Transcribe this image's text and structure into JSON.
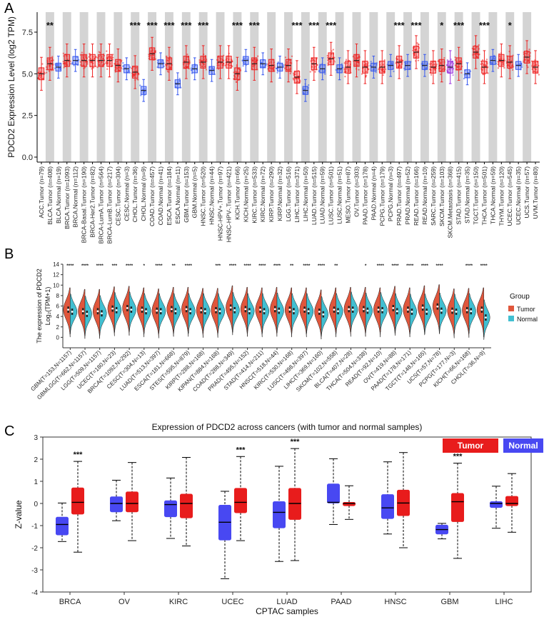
{
  "panel_labels": [
    "A",
    "B",
    "C"
  ],
  "chart_data": [
    {
      "type": "box",
      "panel": "A",
      "ylabel": "PDCD2 Expression Level (log2 TPM)",
      "ylim": [
        -0.3,
        8.7
      ],
      "yticks": [
        "0.0",
        "2.5",
        "5.0",
        "7.5"
      ],
      "ytick_values": [
        0,
        2.5,
        5,
        7.5
      ],
      "categories": [
        "ACC.Tumor (n=79)",
        "BLCA.Tumor (n=408)",
        "BLCA.Normal (n=19)",
        "BRCA.Tumor (n=1093)",
        "BRCA.Normal (n=112)",
        "BRCA-Basal.Tumor (n=190)",
        "BRCA-Her2.Tumor (n=82)",
        "BRCA-LumA.Tumor (n=564)",
        "BRCA-LumB.Tumor (n=217)",
        "CESC.Tumor (n=304)",
        "CESC.Normal (n=3)",
        "CHOL.Tumor (n=36)",
        "CHOL.Normal (n=9)",
        "COAD.Tumor (n=457)",
        "COAD.Normal (n=41)",
        "ESCA.Tumor (n=184)",
        "ESCA.Normal (n=11)",
        "GBM.Tumor (n=153)",
        "GBM.Normal (n=5)",
        "HNSC.Tumor (n=520)",
        "HNSC.Normal (n=44)",
        "HNSC-HPV+.Tumor (n=97)",
        "HNSC-HPV-.Tumor (n=421)",
        "KICH.Tumor (n=66)",
        "KICH.Normal (n=25)",
        "KIRC.Tumor (n=533)",
        "KIRC.Normal (n=72)",
        "KIRP.Tumor (n=290)",
        "KIRP.Normal (n=32)",
        "LGG.Tumor (n=516)",
        "LIHC.Tumor (n=371)",
        "LIHC.Normal (n=50)",
        "LUAD.Tumor (n=515)",
        "LUAD.Normal (n=59)",
        "LUSC.Tumor (n=501)",
        "LUSC.Normal (n=51)",
        "MESO.Tumor (n=87)",
        "OV.Tumor (n=303)",
        "PAAD.Tumor (n=178)",
        "PAAD.Normal (n=4)",
        "PCPG.Tumor (n=179)",
        "PCPG.Normal (n=3)",
        "PRAD.Tumor (n=497)",
        "PRAD.Normal (n=52)",
        "READ.Tumor (n=166)",
        "READ.Normal (n=10)",
        "SARC.Tumor (n=259)",
        "SKCM.Tumor (n=103)",
        "SKCM.Metastasis (n=368)",
        "STAD.Tumor (n=415)",
        "STAD.Normal (n=35)",
        "TGCT.Tumor (n=150)",
        "THCA.Tumor (n=501)",
        "THCA.Normal (n=59)",
        "THYM.Tumor (n=120)",
        "UCEC.Tumor (n=545)",
        "UCEC.Normal (n=35)",
        "UCS.Tumor (n=57)",
        "UVM.Tumor (n=80)"
      ],
      "group": [
        "T",
        "T",
        "N",
        "T",
        "N",
        "T",
        "T",
        "T",
        "T",
        "T",
        "N",
        "T",
        "N",
        "T",
        "N",
        "T",
        "N",
        "T",
        "N",
        "T",
        "N",
        "T",
        "T",
        "T",
        "N",
        "T",
        "N",
        "T",
        "N",
        "T",
        "T",
        "N",
        "T",
        "N",
        "T",
        "N",
        "T",
        "T",
        "T",
        "N",
        "T",
        "N",
        "T",
        "N",
        "T",
        "N",
        "T",
        "T",
        "M",
        "T",
        "N",
        "T",
        "T",
        "N",
        "T",
        "T",
        "N",
        "T",
        "T"
      ],
      "medians": [
        5.0,
        5.6,
        5.4,
        5.8,
        5.8,
        5.8,
        5.8,
        5.8,
        5.8,
        5.5,
        5.3,
        5.1,
        4.0,
        6.2,
        5.6,
        5.6,
        4.4,
        5.7,
        5.3,
        5.7,
        5.2,
        5.7,
        5.7,
        5.0,
        5.8,
        5.6,
        5.6,
        5.5,
        5.4,
        5.5,
        4.8,
        4.0,
        5.6,
        5.3,
        5.9,
        5.3,
        5.4,
        5.8,
        5.4,
        5.4,
        5.4,
        5.5,
        5.7,
        5.5,
        6.3,
        5.5,
        5.4,
        5.5,
        5.4,
        5.6,
        5.0,
        6.3,
        5.4,
        5.8,
        5.8,
        5.7,
        5.5,
        6.0,
        5.4
      ],
      "significance": [
        "",
        "**",
        "",
        "",
        "",
        "",
        "",
        "",
        "",
        "",
        "",
        "***",
        "",
        "***",
        "",
        "***",
        "",
        "***",
        "",
        "***",
        "",
        "",
        "",
        "***",
        "",
        "***",
        "",
        "",
        "",
        "",
        "***",
        "",
        "***",
        "",
        "***",
        "",
        "",
        "",
        "",
        "",
        "",
        "",
        "***",
        "",
        "***",
        "",
        "",
        "*",
        "",
        "***",
        "",
        "",
        "***",
        "",
        "",
        "*",
        "",
        "",
        ""
      ],
      "colors": {
        "tumor": "#ee2222",
        "normal": "#3355ee",
        "metastasis": "#9933dd",
        "band": "#d4d4d4"
      }
    },
    {
      "type": "violin",
      "panel": "B",
      "ylabel_line1": "The expression of PDCD2",
      "ylabel_line2": "Log₂(TPM+1)",
      "ylim": [
        -2,
        14
      ],
      "yticks": [
        "0",
        "2",
        "4",
        "6",
        "8",
        "10",
        "12",
        "14"
      ],
      "ytick_values": [
        0,
        2,
        4,
        6,
        8,
        10,
        12,
        14
      ],
      "categories": [
        "GBM(T=153,N=1157)",
        "GBMLGG(T=662,N=1157)",
        "LGG(T=509,N=1157)",
        "UCEC(T=180,N=23)",
        "BRCA(T=1092,N=292)",
        "CESC(T=304,N=13)",
        "LUAD(T=513,N=397)",
        "ESCA(T=181,N=668)",
        "STES(T=595,N=879)",
        "KIRP(T=288,N=168)",
        "KIPAN(T=884,N=168)",
        "COAD(T=288,N=349)",
        "PRAD(T=495,N=152)",
        "STAD(T=414,N=211)",
        "HNSC(T=518,N=44)",
        "KIRC(T=530,N=168)",
        "LUSC(T=498,N=397)",
        "LIHC(T=369,N=160)",
        "SKCM(T=102,N=558)",
        "BLCA(T=407,N=28)",
        "THCA(T=504,N=338)",
        "READ(T=92,N=10)",
        "OV(T=419,N=88)",
        "PAAD(T=178,N=171)",
        "TGCT(T=148,N=165)",
        "UCS(T=57,N=78)",
        "PCPG(T=177,N=3)",
        "KICH(T=66,N=168)",
        "CHOL(T=36,N=9)"
      ],
      "tumor_median": [
        5.3,
        5.0,
        5.0,
        5.5,
        5.6,
        5.3,
        5.1,
        5.4,
        5.4,
        5.2,
        5.2,
        5.7,
        5.4,
        5.3,
        5.4,
        5.3,
        5.3,
        4.9,
        5.3,
        5.4,
        5.4,
        5.3,
        5.6,
        5.3,
        5.7,
        5.9,
        5.1,
        5.2,
        5.3
      ],
      "normal_median": [
        4.9,
        4.5,
        4.6,
        5.2,
        5.3,
        5.0,
        5.0,
        5.0,
        5.0,
        5.0,
        5.0,
        5.2,
        5.0,
        5.0,
        5.1,
        5.0,
        5.0,
        4.4,
        5.0,
        5.3,
        5.1,
        5.2,
        5.0,
        4.9,
        4.9,
        5.1,
        4.9,
        5.0,
        3.8
      ],
      "significance": [
        "****",
        "****",
        "****",
        "***",
        "****",
        "*",
        "****",
        "**",
        "****",
        "",
        "***",
        "****",
        "****",
        "****",
        "****",
        "**",
        "****",
        "****",
        "**",
        "",
        "*",
        "****",
        "****",
        "****",
        "****",
        "****",
        "",
        "****",
        "****"
      ],
      "legend_title": "Group",
      "legend": [
        "Tumor",
        "Normal"
      ],
      "colors": {
        "tumor": "#e0563c",
        "normal": "#41bfd1"
      }
    },
    {
      "type": "box",
      "panel": "C",
      "title": "Expression of PDCD2 across cancers (with tumor and normal samples)",
      "xlabel": "CPTAC samples",
      "ylabel": "Z-value",
      "ylim": [
        -4,
        3
      ],
      "yticks": [
        "-4",
        "-3",
        "-2",
        "-1",
        "0",
        "1",
        "2",
        "3"
      ],
      "ytick_values": [
        -4,
        -3,
        -2,
        -1,
        0,
        1,
        2,
        3
      ],
      "categories": [
        "BRCA",
        "OV",
        "KIRC",
        "UCEC",
        "LUAD",
        "PAAD",
        "HNSC",
        "GBM",
        "LIHC"
      ],
      "legend": [
        "Tumor",
        "Normal"
      ],
      "colors": {
        "tumor": "#e81c1c",
        "normal": "#4848f2"
      },
      "normal": [
        {
          "min": -1.72,
          "q1": -1.42,
          "median": -0.95,
          "q3": -0.62,
          "max": 0.02
        },
        {
          "min": -0.78,
          "q1": -0.38,
          "median": 0.0,
          "q3": 0.3,
          "max": 1.05
        },
        {
          "min": -1.58,
          "q1": -0.6,
          "median": -0.05,
          "q3": 0.12,
          "max": 1.15
        },
        {
          "min": -3.4,
          "q1": -1.65,
          "median": -0.85,
          "q3": -0.08,
          "max": 0.55
        },
        {
          "min": -2.62,
          "q1": -1.1,
          "median": -0.4,
          "q3": 0.08,
          "max": 1.68
        },
        {
          "min": -0.95,
          "q1": 0.02,
          "median": 0.05,
          "q3": 0.88,
          "max": 2.02
        },
        {
          "min": -1.38,
          "q1": -0.68,
          "median": -0.2,
          "q3": 0.4,
          "max": 1.88
        },
        {
          "min": -1.6,
          "q1": -1.38,
          "median": -1.18,
          "q3": -0.98,
          "max": -0.9
        },
        {
          "min": -1.12,
          "q1": -0.18,
          "median": 0.0,
          "q3": 0.08,
          "max": 0.78
        }
      ],
      "tumor": [
        {
          "min": -2.2,
          "q1": -0.48,
          "median": 0.05,
          "q3": 0.7,
          "max": 1.9
        },
        {
          "min": -1.68,
          "q1": -0.38,
          "median": 0.0,
          "q3": 0.52,
          "max": 1.85
        },
        {
          "min": -1.92,
          "q1": -0.65,
          "median": 0.0,
          "q3": 0.42,
          "max": 2.08
        },
        {
          "min": -1.68,
          "q1": -0.42,
          "median": 0.05,
          "q3": 0.68,
          "max": 2.12
        },
        {
          "min": -2.58,
          "q1": -0.72,
          "median": 0.0,
          "q3": 0.68,
          "max": 2.48
        },
        {
          "min": -0.72,
          "q1": -0.1,
          "median": 0.0,
          "q3": 0.05,
          "max": 0.8
        },
        {
          "min": -2.0,
          "q1": -0.55,
          "median": 0.02,
          "q3": 0.6,
          "max": 2.3
        },
        {
          "min": -2.48,
          "q1": -0.82,
          "median": 0.08,
          "q3": 0.45,
          "max": 1.82
        },
        {
          "min": -1.3,
          "q1": -0.1,
          "median": 0.0,
          "q3": 0.32,
          "max": 1.35
        }
      ],
      "significance": [
        "***",
        "",
        "",
        "***",
        "***",
        "",
        "",
        "***",
        ""
      ]
    }
  ]
}
